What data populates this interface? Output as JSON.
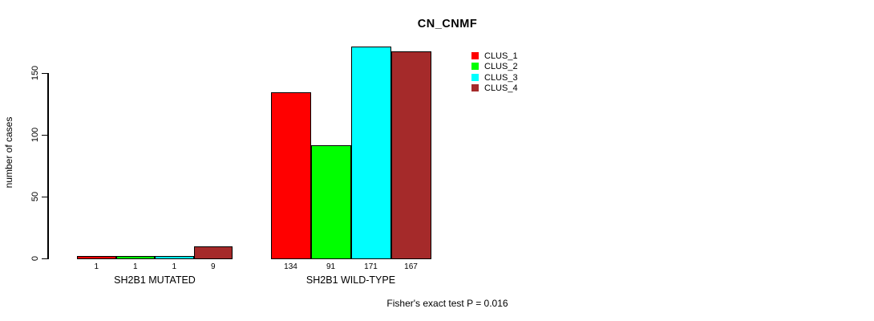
{
  "title": "CN_CNMF",
  "y_axis": {
    "label": "number of cases"
  },
  "footer": "Fisher's exact test P = 0.016",
  "legend": {
    "items": [
      {
        "label": "CLUS_1",
        "color": "#ff0000"
      },
      {
        "label": "CLUS_2",
        "color": "#00ff00"
      },
      {
        "label": "CLUS_3",
        "color": "#00ffff"
      },
      {
        "label": "CLUS_4",
        "color": "#a52a2a"
      }
    ]
  },
  "chart_data": {
    "type": "bar",
    "title": "CN_CNMF",
    "xlabel": "",
    "ylabel": "number of cases",
    "ylim": [
      0,
      175
    ],
    "yticks": [
      0,
      50,
      100,
      150
    ],
    "grid": false,
    "legend_position": "top-right",
    "categories": [
      "SH2B1 MUTATED",
      "SH2B1 WILD-TYPE"
    ],
    "series": [
      {
        "name": "CLUS_1",
        "color": "#ff0000",
        "values": [
          1,
          134
        ]
      },
      {
        "name": "CLUS_2",
        "color": "#00ff00",
        "values": [
          1,
          91
        ]
      },
      {
        "name": "CLUS_3",
        "color": "#00ffff",
        "values": [
          1,
          171
        ]
      },
      {
        "name": "CLUS_4",
        "color": "#a52a2a",
        "values": [
          9,
          167
        ]
      }
    ],
    "bar_value_labels": [
      [
        "1",
        "1",
        "1",
        "9"
      ],
      [
        "134",
        "91",
        "171",
        "167"
      ]
    ],
    "annotation": "Fisher's exact test P = 0.016"
  }
}
